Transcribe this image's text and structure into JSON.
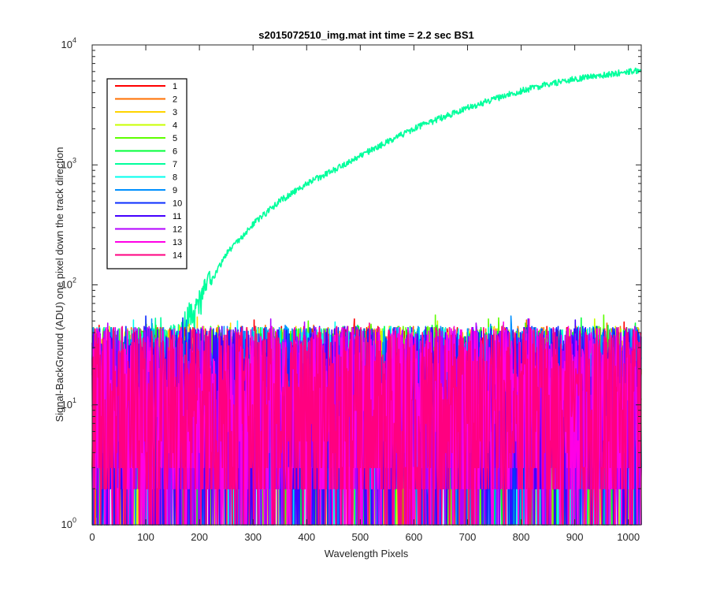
{
  "chart_data": {
    "type": "line",
    "title": "s2015072510_img.mat int time = 2.2 sec   BS1",
    "xlabel": "Wavelength Pixels",
    "ylabel": "Signal-BackGround (ADU) one pixel down the track direction",
    "xlim": [
      0,
      1024
    ],
    "ylim": [
      1,
      10000
    ],
    "yscale": "log",
    "x_ticks": [
      "0",
      "100",
      "200",
      "300",
      "400",
      "500",
      "600",
      "700",
      "800",
      "900",
      "1000"
    ],
    "y_ticks": [
      {
        "base": "10",
        "exp": "0"
      },
      {
        "base": "10",
        "exp": "1"
      },
      {
        "base": "10",
        "exp": "2"
      },
      {
        "base": "10",
        "exp": "3"
      },
      {
        "base": "10",
        "exp": "4"
      }
    ],
    "grid": false,
    "legend_position": "top-left",
    "series": [
      {
        "name": "1",
        "color": "#ff0000",
        "description": "noise fluctuating ~1-50 ADU across all pixels"
      },
      {
        "name": "2",
        "color": "#ff6f00",
        "description": "noise fluctuating ~1-50 ADU across all pixels"
      },
      {
        "name": "3",
        "color": "#ffd400",
        "description": "noise fluctuating ~1-50 ADU across all pixels"
      },
      {
        "name": "4",
        "color": "#c8ff00",
        "description": "noise fluctuating ~1-50 ADU across all pixels"
      },
      {
        "name": "5",
        "color": "#5dff00",
        "description": "noise fluctuating ~1-50 ADU across all pixels"
      },
      {
        "name": "6",
        "color": "#00ff3a",
        "description": "noise fluctuating ~1-50 ADU across all pixels"
      },
      {
        "name": "7",
        "color": "#00ff9c",
        "x": [
          0,
          100,
          130,
          150,
          170,
          200,
          250,
          300,
          350,
          400,
          450,
          500,
          550,
          600,
          650,
          700,
          750,
          800,
          850,
          900,
          950,
          1000,
          1024
        ],
        "y": [
          12,
          20,
          28,
          35,
          45,
          70,
          180,
          320,
          500,
          700,
          900,
          1200,
          1550,
          2000,
          2450,
          3000,
          3550,
          4150,
          4700,
          5200,
          5600,
          6000,
          6100
        ]
      },
      {
        "name": "8",
        "color": "#00ffee",
        "description": "noise fluctuating ~1-50 ADU across all pixels"
      },
      {
        "name": "9",
        "color": "#0090ff",
        "description": "noise fluctuating ~1-50 ADU across all pixels"
      },
      {
        "name": "10",
        "color": "#0a2cff",
        "description": "noise fluctuating ~1-50 ADU across all pixels"
      },
      {
        "name": "11",
        "color": "#4400ff",
        "description": "noise fluctuating ~1-50 ADU across all pixels"
      },
      {
        "name": "12",
        "color": "#b300ff",
        "description": "noise fluctuating ~1-50 ADU across all pixels"
      },
      {
        "name": "13",
        "color": "#ff00e6",
        "description": "noise fluctuating ~1-50 ADU across all pixels"
      },
      {
        "name": "14",
        "color": "#ff0080",
        "description": "noise fluctuating ~1-50 ADU across all pixels"
      }
    ]
  }
}
